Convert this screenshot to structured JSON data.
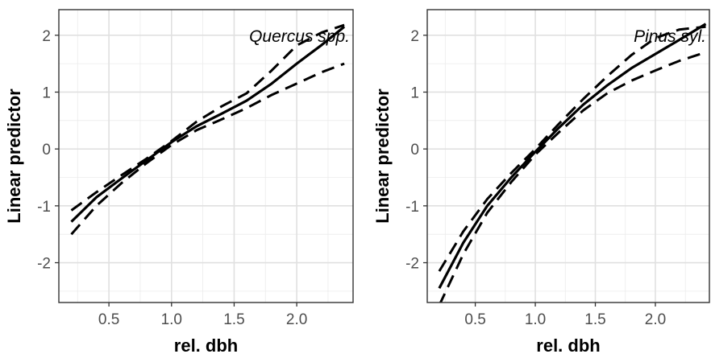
{
  "chart_data": [
    {
      "type": "line",
      "title": "",
      "annotation": "Quercus spp.",
      "xlabel": "rel. dbh",
      "ylabel": "Linear predictor",
      "xlim": [
        0.1,
        2.45
      ],
      "ylim": [
        -2.7,
        2.45
      ],
      "xticks": [
        0.5,
        1.0,
        1.5,
        2.0
      ],
      "xtick_labels": [
        "0.5",
        "1.0",
        "1.5",
        "2.0"
      ],
      "yticks": [
        -2,
        -1,
        0,
        1,
        2
      ],
      "ytick_labels": [
        "-2",
        "-1",
        "0",
        "1",
        "2"
      ],
      "grid": true,
      "series": [
        {
          "style": "solid",
          "x": [
            0.2,
            0.4,
            0.6,
            0.8,
            1.0,
            1.2,
            1.4,
            1.6,
            1.8,
            2.0,
            2.2,
            2.38
          ],
          "y": [
            -1.28,
            -0.85,
            -0.52,
            -0.2,
            0.12,
            0.4,
            0.62,
            0.85,
            1.15,
            1.5,
            1.83,
            2.15
          ]
        },
        {
          "style": "dashed",
          "x": [
            0.2,
            0.4,
            0.6,
            0.8,
            1.0,
            1.2,
            1.4,
            1.6,
            1.8,
            2.0,
            2.2,
            2.38
          ],
          "y": [
            -1.08,
            -0.76,
            -0.46,
            -0.17,
            0.14,
            0.48,
            0.75,
            0.98,
            1.38,
            1.82,
            2.05,
            2.18
          ]
        },
        {
          "style": "dashed",
          "x": [
            0.2,
            0.4,
            0.6,
            0.8,
            1.0,
            1.2,
            1.4,
            1.6,
            1.8,
            2.0,
            2.2,
            2.38
          ],
          "y": [
            -1.5,
            -1.0,
            -0.6,
            -0.25,
            0.07,
            0.33,
            0.52,
            0.72,
            0.95,
            1.15,
            1.35,
            1.5
          ]
        }
      ]
    },
    {
      "type": "line",
      "title": "",
      "annotation": "Pinus syl.",
      "xlabel": "rel. dbh",
      "ylabel": "Linear predictor",
      "xlim": [
        0.1,
        2.45
      ],
      "ylim": [
        -2.7,
        2.45
      ],
      "xticks": [
        0.5,
        1.0,
        1.5,
        2.0
      ],
      "xtick_labels": [
        "0.5",
        "1.0",
        "1.5",
        "2.0"
      ],
      "yticks": [
        -2,
        -1,
        0,
        1,
        2
      ],
      "ytick_labels": [
        "-2",
        "-1",
        "0",
        "1",
        "2"
      ],
      "grid": true,
      "series": [
        {
          "style": "solid",
          "x": [
            0.2,
            0.4,
            0.6,
            0.8,
            1.0,
            1.2,
            1.4,
            1.6,
            1.8,
            2.0,
            2.2,
            2.42
          ],
          "y": [
            -2.45,
            -1.65,
            -1.0,
            -0.5,
            -0.05,
            0.38,
            0.78,
            1.12,
            1.42,
            1.67,
            1.92,
            2.2
          ]
        },
        {
          "style": "dashed",
          "x": [
            0.2,
            0.4,
            0.6,
            0.8,
            1.0,
            1.2,
            1.4,
            1.6,
            1.8,
            2.0,
            2.2,
            2.42
          ],
          "y": [
            -2.15,
            -1.45,
            -0.88,
            -0.42,
            0.0,
            0.45,
            0.88,
            1.28,
            1.65,
            1.95,
            2.1,
            2.15
          ]
        },
        {
          "style": "dashed",
          "x": [
            0.2,
            0.4,
            0.6,
            0.8,
            1.0,
            1.2,
            1.4,
            1.6,
            1.8,
            2.0,
            2.2,
            2.42
          ],
          "y": [
            -2.75,
            -1.85,
            -1.12,
            -0.58,
            -0.1,
            0.3,
            0.68,
            0.98,
            1.2,
            1.38,
            1.55,
            1.7
          ]
        }
      ]
    }
  ]
}
